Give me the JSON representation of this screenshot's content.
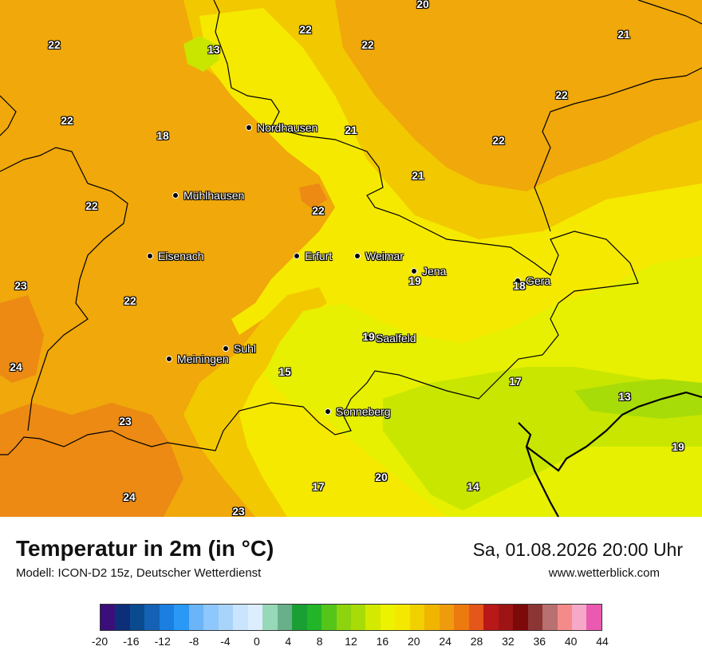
{
  "map": {
    "colors": {
      "t14": "#c8e600",
      "t16": "#e6f000",
      "t18": "#f5e900",
      "t20": "#f2c800",
      "t22": "#f0a80a",
      "t24": "#ec8a14",
      "border": "#000000"
    },
    "cities": [
      {
        "name": "Nordhausen"
      },
      {
        "name": "Mühlhausen"
      },
      {
        "name": "Eisenach"
      },
      {
        "name": "Erfurt"
      },
      {
        "name": "Weimar"
      },
      {
        "name": "Jena"
      },
      {
        "name": "Gera"
      },
      {
        "name": "Saalfeld"
      },
      {
        "name": "Suhl"
      },
      {
        "name": "Meiningen"
      },
      {
        "name": "Sonneberg"
      }
    ],
    "temperatures": [
      "20",
      "22",
      "22",
      "22",
      "13",
      "21",
      "22",
      "21",
      "18",
      "22",
      "21",
      "22",
      "22",
      "22",
      "23",
      "19",
      "18",
      "22",
      "24",
      "19",
      "15",
      "17",
      "13",
      "23",
      "19",
      "17",
      "20",
      "14",
      "24",
      "23"
    ]
  },
  "footer": {
    "title": "Temperatur in 2m (in °C)",
    "subtitle": "Modell: ICON-D2 15z, Deutscher Wetterdienst",
    "datetime": "Sa, 01.08.2026 20:00 Uhr",
    "website": "www.wetterblick.com"
  },
  "legend": {
    "colors": [
      "#3a0f7a",
      "#0d2f7a",
      "#0a4a8f",
      "#1561b5",
      "#1a7fe0",
      "#2a98f5",
      "#6ab4f7",
      "#8ec7fb",
      "#a9d4fa",
      "#c9e4fc",
      "#dceefd",
      "#97d8b8",
      "#68b08a",
      "#1a9f35",
      "#22b52a",
      "#55c51a",
      "#8dd40e",
      "#a8dc08",
      "#d4e900",
      "#ecf200",
      "#f4e800",
      "#f1d000",
      "#f0b500",
      "#ef9b0e",
      "#ec7a10",
      "#e4561a",
      "#b81818",
      "#9e1414",
      "#7d0a0a",
      "#8c3535",
      "#b87070",
      "#f58a8a",
      "#f7a8c8",
      "#ea5ab0"
    ],
    "ticks": [
      "-20",
      "-16",
      "-12",
      "-8",
      "-4",
      "0",
      "4",
      "8",
      "12",
      "16",
      "20",
      "24",
      "28",
      "32",
      "36",
      "40",
      "44"
    ]
  }
}
